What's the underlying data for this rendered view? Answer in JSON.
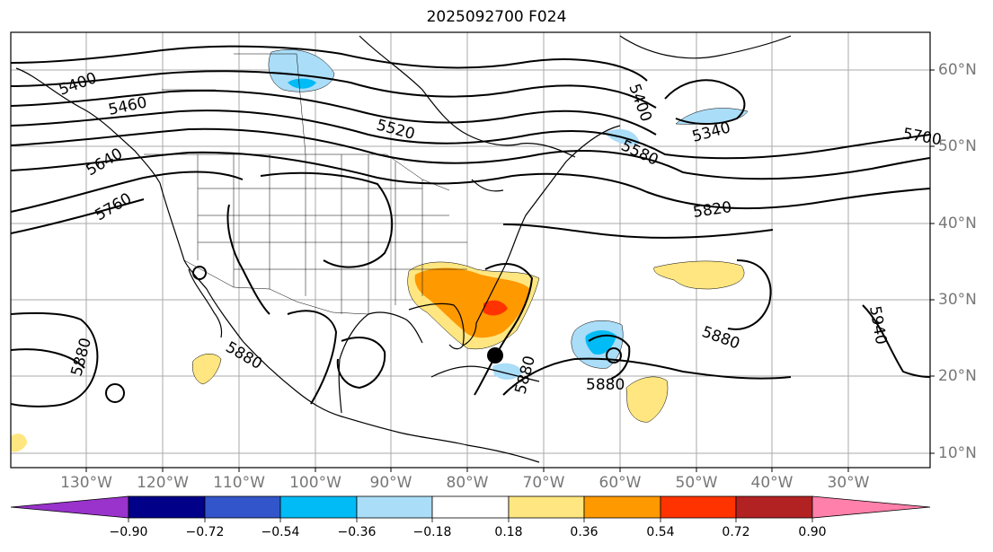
{
  "title": "2025092700 F024",
  "longitude_labels": [
    "130°W",
    "120°W",
    "110°W",
    "100°W",
    "90°W",
    "80°W",
    "70°W",
    "60°W",
    "50°W",
    "40°W",
    "30°W"
  ],
  "latitude_labels": [
    "60°N",
    "50°N",
    "40°N",
    "30°N",
    "20°N",
    "10°N"
  ],
  "contour_labels": [
    "5400",
    "5460",
    "5520",
    "5640",
    "5760",
    "5400",
    "5580",
    "5340",
    "5820",
    "5700",
    "5880",
    "5880",
    "5880",
    "5880",
    "5880",
    "5940"
  ],
  "colorbar": {
    "ticks": [
      "−0.90",
      "−0.72",
      "−0.54",
      "−0.36",
      "−0.18",
      "0.18",
      "0.36",
      "0.54",
      "0.72",
      "0.90"
    ],
    "colors": [
      "#9933cc",
      "#000088",
      "#3355cc",
      "#00bbf5",
      "#aaddf8",
      "#ffffff",
      "#ffe680",
      "#ff9900",
      "#ff3300",
      "#b22222",
      "#ff80aa"
    ]
  },
  "colors": {
    "contour": "#000000",
    "grid": "#aaaaaa",
    "label_gray": "#777777"
  }
}
